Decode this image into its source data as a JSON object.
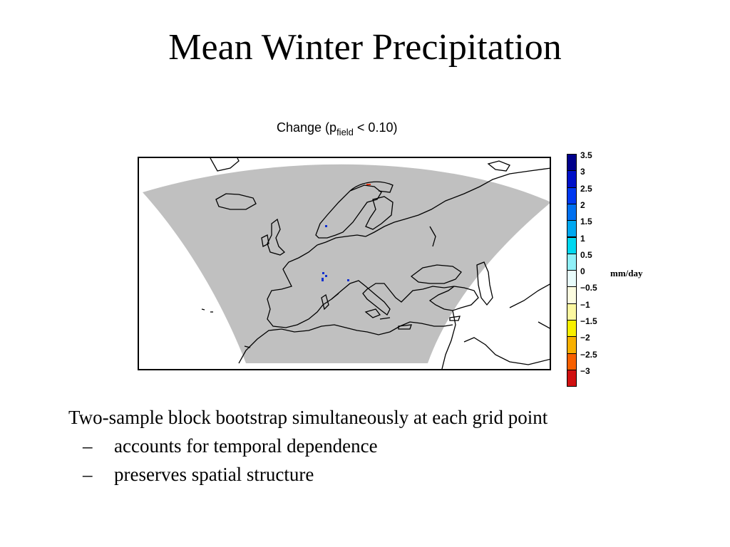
{
  "slide": {
    "title": "Mean Winter Precipitation"
  },
  "map": {
    "title_prefix": "Change (p",
    "title_subscript": "field",
    "title_suffix": " < 0.10)",
    "domain_fill_color": "#c0c0c0",
    "coastline_color": "#000000",
    "significant_points": [
      {
        "place": "northern Scandinavia",
        "color": "#e03010"
      },
      {
        "place": "southern Norway",
        "color": "#1030d0"
      },
      {
        "place": "western Alps",
        "color": "#1030d0"
      },
      {
        "place": "central Italy",
        "color": "#1030d0"
      }
    ]
  },
  "colorbar": {
    "unit": "mm/day",
    "levels": [
      {
        "label": "3.5",
        "color": "#00008b"
      },
      {
        "label": "3",
        "color": "#0010c8"
      },
      {
        "label": "2.5",
        "color": "#0038f0"
      },
      {
        "label": "2",
        "color": "#0070f0"
      },
      {
        "label": "1.5",
        "color": "#00a8f0"
      },
      {
        "label": "1",
        "color": "#00d8f0"
      },
      {
        "label": "0.5",
        "color": "#90f0f8"
      },
      {
        "label": "0",
        "color": "#e8fcfc"
      },
      {
        "label": "−0.5",
        "color": "#fcfce0"
      },
      {
        "label": "−1",
        "color": "#fcf8a0"
      },
      {
        "label": "−1.5",
        "color": "#f8f000"
      },
      {
        "label": "−2",
        "color": "#f8b000"
      },
      {
        "label": "−2.5",
        "color": "#f86000"
      },
      {
        "label": "−3",
        "color": "#d01010"
      }
    ]
  },
  "body": {
    "main": "Two-sample block bootstrap simultaneously at each grid point",
    "bullets": [
      {
        "dash": "–",
        "text": "accounts for temporal dependence"
      },
      {
        "dash": "–",
        "text": "preserves spatial structure"
      }
    ]
  }
}
